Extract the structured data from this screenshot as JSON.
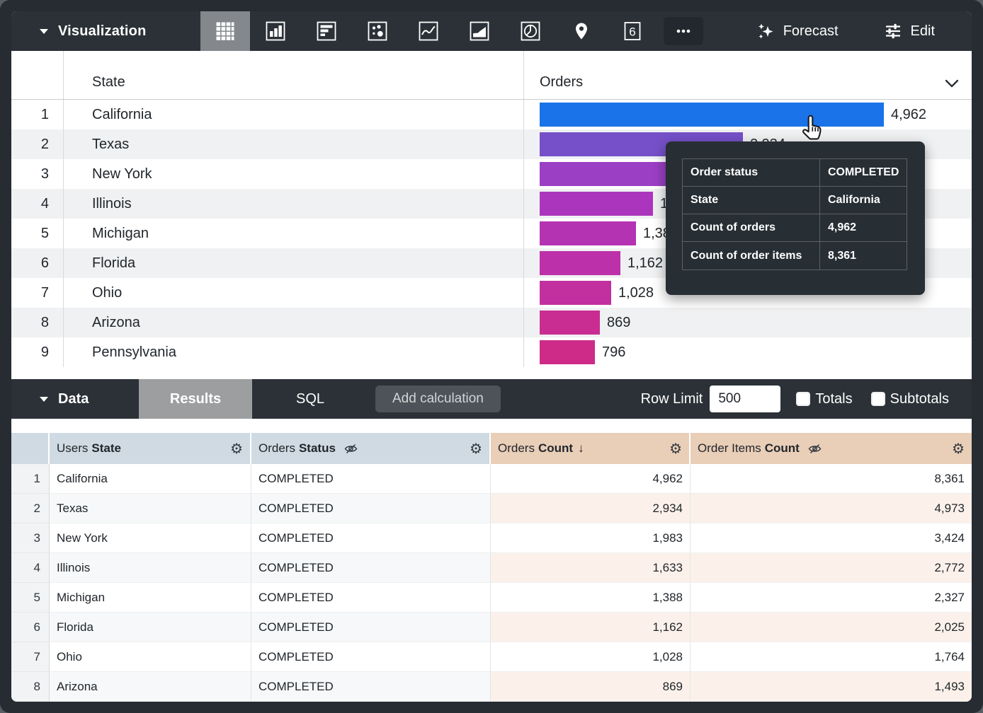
{
  "viz_toolbar": {
    "label": "Visualization",
    "icons": [
      "table-chart",
      "column-chart",
      "bar-chart",
      "scatter-chart",
      "line-chart",
      "area-chart",
      "pie-chart",
      "map-chart",
      "single-value",
      "more-options"
    ],
    "selected_icon": "table-chart",
    "single_value_glyph": "6",
    "forecast_label": "Forecast",
    "edit_label": "Edit"
  },
  "viz_table": {
    "state_header": "State",
    "orders_header": "Orders",
    "max_count": 4962,
    "rows": [
      {
        "num": "1",
        "state": "California",
        "value": "4,962",
        "count": 4962,
        "color": "#1a73e8"
      },
      {
        "num": "2",
        "state": "Texas",
        "value": "2,934",
        "count": 2934,
        "color": "#7550c8"
      },
      {
        "num": "3",
        "state": "New York",
        "value": "1,983",
        "count": 1983,
        "color": "#9b3fc4"
      },
      {
        "num": "4",
        "state": "Illinois",
        "value": "1,633",
        "count": 1633,
        "color": "#ab36bd"
      },
      {
        "num": "5",
        "state": "Michigan",
        "value": "1,388",
        "count": 1388,
        "color": "#b433b3"
      },
      {
        "num": "6",
        "state": "Florida",
        "value": "1,162",
        "count": 1162,
        "color": "#bc31a9"
      },
      {
        "num": "7",
        "state": "Ohio",
        "value": "1,028",
        "count": 1028,
        "color": "#c22f9f"
      },
      {
        "num": "8",
        "state": "Arizona",
        "value": "869",
        "count": 869,
        "color": "#c92d92"
      },
      {
        "num": "9",
        "state": "Pennsylvania",
        "value": "796",
        "count": 796,
        "color": "#ce2b89"
      }
    ]
  },
  "chart_data": {
    "type": "bar",
    "orientation": "horizontal",
    "categories": [
      "California",
      "Texas",
      "New York",
      "Illinois",
      "Michigan",
      "Florida",
      "Ohio",
      "Arizona",
      "Pennsylvania"
    ],
    "values": [
      4962,
      2934,
      1983,
      1633,
      1388,
      1162,
      1028,
      869,
      796
    ],
    "series_name": "Orders Count",
    "value_labels": [
      "4,962",
      "2,934",
      "1,983",
      "1,633",
      "1,388",
      "1,162",
      "1,028",
      "869",
      "796"
    ],
    "xlim": [
      0,
      4962
    ],
    "colors": [
      "#1a73e8",
      "#7550c8",
      "#9b3fc4",
      "#ab36bd",
      "#b433b3",
      "#bc31a9",
      "#c22f9f",
      "#c92d92",
      "#ce2b89"
    ]
  },
  "tooltip": {
    "rows": [
      {
        "label": "Order status",
        "value": "COMPLETED"
      },
      {
        "label": "State",
        "value": "California"
      },
      {
        "label": "Count of orders",
        "value": "4,962"
      },
      {
        "label": "Count of order items",
        "value": "8,361"
      }
    ]
  },
  "data_toolbar": {
    "label": "Data",
    "tabs": [
      {
        "label": "Results",
        "active": true
      },
      {
        "label": "SQL",
        "active": false
      }
    ],
    "add_calculation_label": "Add calculation",
    "row_limit_label": "Row Limit",
    "row_limit_value": "500",
    "totals_label": "Totals",
    "subtotals_label": "Subtotals"
  },
  "data_table": {
    "columns": [
      {
        "view": "Users",
        "field": "State",
        "type": "dimension",
        "hidden": false,
        "sorted": null
      },
      {
        "view": "Orders",
        "field": "Status",
        "type": "dimension",
        "hidden": true,
        "sorted": null
      },
      {
        "view": "Orders",
        "field": "Count",
        "type": "measure",
        "hidden": false,
        "sorted": "desc"
      },
      {
        "view": "Order Items",
        "field": "Count",
        "type": "measure",
        "hidden": true,
        "sorted": null
      }
    ],
    "rows": [
      {
        "num": "1",
        "state": "California",
        "status": "COMPLETED",
        "orders_count": "4,962",
        "order_items_count": "8,361"
      },
      {
        "num": "2",
        "state": "Texas",
        "status": "COMPLETED",
        "orders_count": "2,934",
        "order_items_count": "4,973"
      },
      {
        "num": "3",
        "state": "New York",
        "status": "COMPLETED",
        "orders_count": "1,983",
        "order_items_count": "3,424"
      },
      {
        "num": "4",
        "state": "Illinois",
        "status": "COMPLETED",
        "orders_count": "1,633",
        "order_items_count": "2,772"
      },
      {
        "num": "5",
        "state": "Michigan",
        "status": "COMPLETED",
        "orders_count": "1,388",
        "order_items_count": "2,327"
      },
      {
        "num": "6",
        "state": "Florida",
        "status": "COMPLETED",
        "orders_count": "1,162",
        "order_items_count": "2,025"
      },
      {
        "num": "7",
        "state": "Ohio",
        "status": "COMPLETED",
        "orders_count": "1,028",
        "order_items_count": "1,764"
      },
      {
        "num": "8",
        "state": "Arizona",
        "status": "COMPLETED",
        "orders_count": "869",
        "order_items_count": "1,493"
      }
    ]
  }
}
